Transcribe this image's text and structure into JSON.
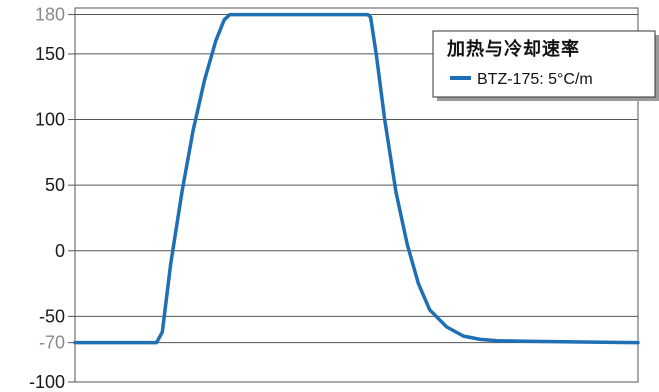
{
  "chart_data": {
    "type": "line",
    "title": "加热与冷却速率",
    "xlabel": "",
    "ylabel": "",
    "ylim": [
      -100,
      185
    ],
    "xlim": [
      0,
      100
    ],
    "x_tick_labels": [],
    "y_ticks": [
      {
        "value": 180,
        "label": "180",
        "muted": true
      },
      {
        "value": 150,
        "label": "150",
        "muted": false
      },
      {
        "value": 100,
        "label": "100",
        "muted": false
      },
      {
        "value": 50,
        "label": "50",
        "muted": false
      },
      {
        "value": 0,
        "label": "0",
        "muted": false
      },
      {
        "value": -50,
        "label": "-50",
        "muted": false
      },
      {
        "value": -70,
        "label": "-70",
        "muted": true
      },
      {
        "value": -100,
        "label": "-100",
        "muted": false
      }
    ],
    "grid": true,
    "legend_position": "top-right",
    "series": [
      {
        "name": "BTZ-175: 5°C/m",
        "color": "#1f6fb4",
        "x": [
          0,
          14.5,
          15.5,
          17,
          19,
          21,
          23,
          25,
          26.5,
          27.5,
          29.5,
          31,
          31.5,
          52,
          52.5,
          53.5,
          55,
          57,
          59,
          61,
          63,
          66,
          69,
          72,
          75,
          80,
          90,
          100
        ],
        "y": [
          -70,
          -70,
          -62,
          -10,
          45,
          92,
          130,
          160,
          176,
          180,
          180,
          180,
          180,
          180,
          178,
          150,
          100,
          45,
          5,
          -25,
          -45,
          -58,
          -65,
          -67.5,
          -68.5,
          -69,
          -69.5,
          -70
        ]
      }
    ]
  }
}
